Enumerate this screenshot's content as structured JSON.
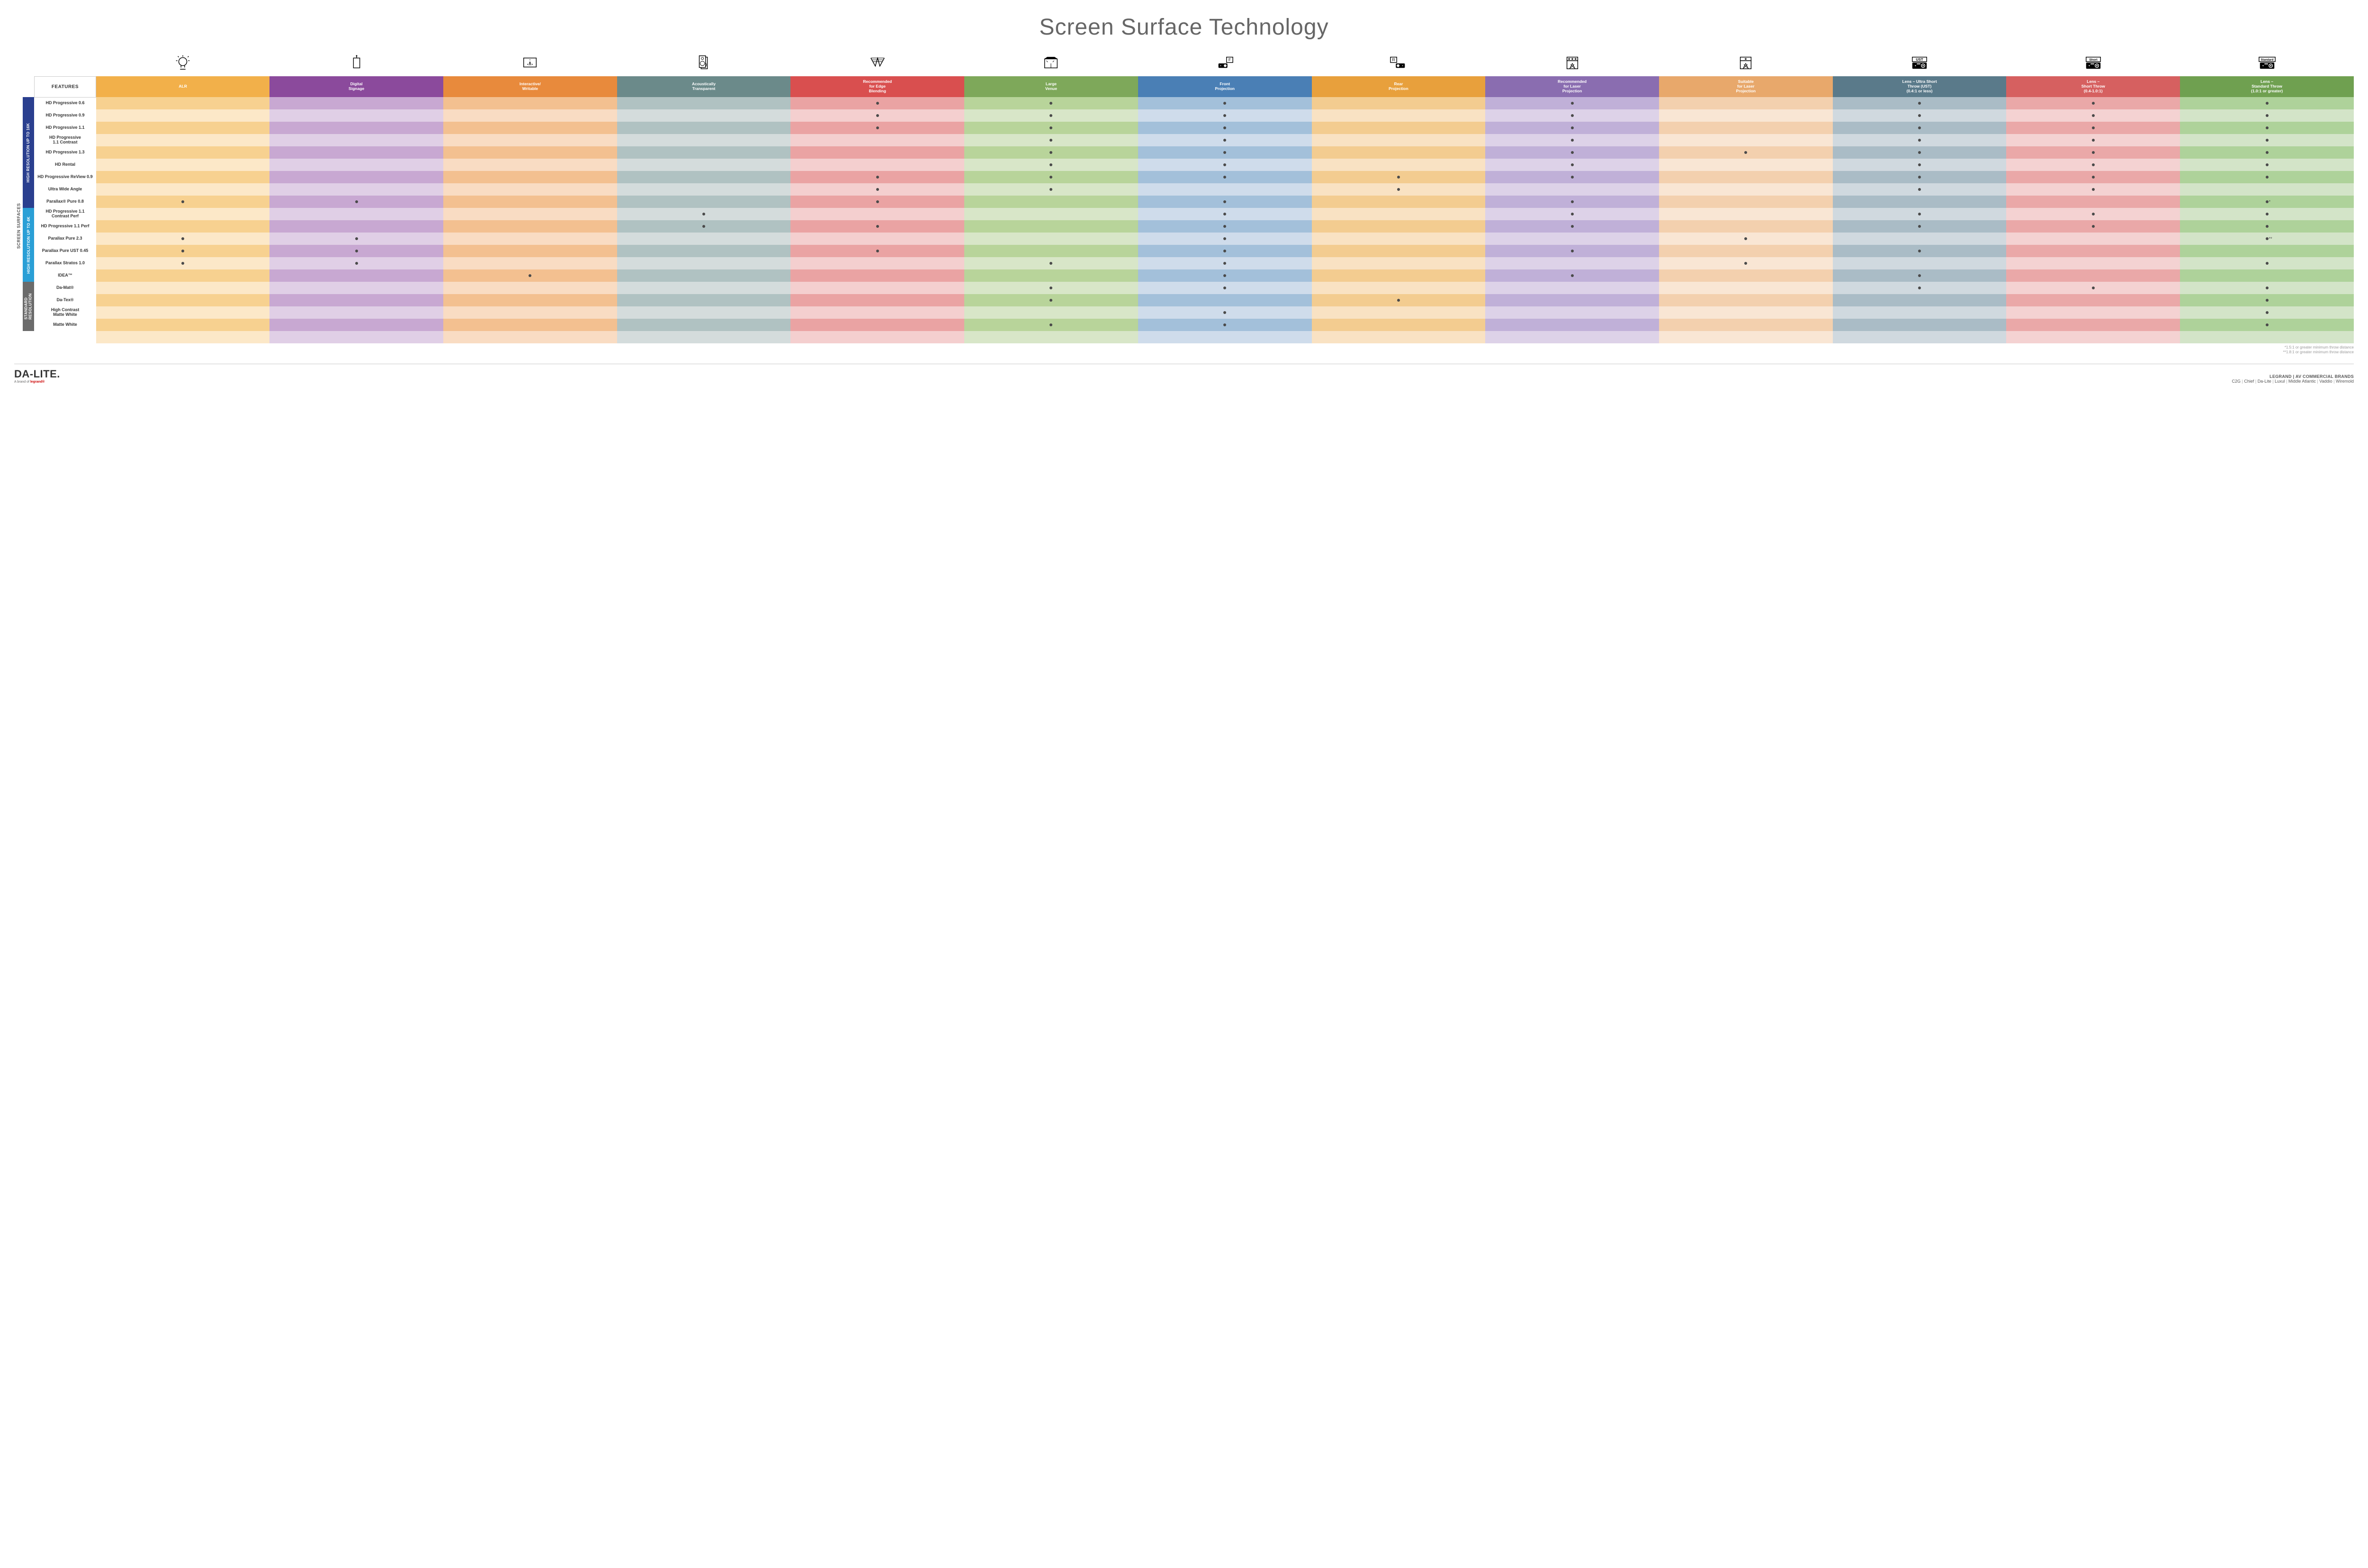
{
  "title": "Screen Surface Technology",
  "outer_label": "SCREEN SURFACES",
  "colors": {
    "columns": [
      "#f2b04a",
      "#8b4a9c",
      "#e88a3c",
      "#6b8a8a",
      "#d94f4f",
      "#7ea85a",
      "#4a7fb5",
      "#e8a03c",
      "#8a6db0",
      "#e8a86b",
      "#5a7a8a",
      "#d66060",
      "#6fa050"
    ],
    "columns_light": [
      "#fce8c8",
      "#e0cfe6",
      "#f9dcc3",
      "#d4dcdc",
      "#f4cfcf",
      "#d8e6c8",
      "#cfdceb",
      "#f9e2c3",
      "#ddd2e8",
      "#f9e6d4",
      "#d0d9df",
      "#f4d2d2",
      "#d3e4c8"
    ],
    "columns_mid": [
      "#f7d190",
      "#c8a8d2",
      "#f3c090",
      "#b0c2c2",
      "#eaa3a3",
      "#b8d49a",
      "#a3c0da",
      "#f3cc90",
      "#c0b0d8",
      "#f3d0ae",
      "#aabcc6",
      "#eaa8a8",
      "#aed29a"
    ],
    "groups": [
      "#2a3f8f",
      "#2a9fd6",
      "#6b6b6b"
    ]
  },
  "columns": [
    {
      "label": "ALR",
      "icon": "bulb"
    },
    {
      "label": "Digital\nSignage",
      "icon": "signage"
    },
    {
      "label": "Interactive/\nWritable",
      "icon": "touch"
    },
    {
      "label": "Acoustically\nTransparent",
      "icon": "speaker"
    },
    {
      "label": "Recommended\nfor Edge\nBlending",
      "icon": "edge"
    },
    {
      "label": "Large\nVenue",
      "icon": "venue"
    },
    {
      "label": "Front\nProjection",
      "icon": "front"
    },
    {
      "label": "Rear\nProjection",
      "icon": "rear"
    },
    {
      "label": "Recommended\nfor Laser\nProjection",
      "icon": "laser3"
    },
    {
      "label": "Suitable\nfor Laser\nProjection",
      "icon": "laser1"
    },
    {
      "label": "Lens – Ultra Short\nThrow (UST)\n(0.4:1 or less)",
      "icon": "ust"
    },
    {
      "label": "Lens –\nShort Throw\n(0.4-1.0:1)",
      "icon": "short"
    },
    {
      "label": "Lens –\nStandard Throw\n(1.0:1 or greater)",
      "icon": "std"
    }
  ],
  "groups": [
    {
      "label": "HIGH RESOLUTION UP TO 16K",
      "rows": 9
    },
    {
      "label": "HIGH RESOLUTION UP TO 4K",
      "rows": 6
    },
    {
      "label": "STANDARD\nRESOLUTION",
      "rows": 4
    }
  ],
  "features_header": "FEATURES",
  "rows": [
    {
      "label": "HD Progressive 0.6",
      "dots": [
        0,
        0,
        0,
        0,
        1,
        1,
        1,
        0,
        1,
        0,
        1,
        1,
        1
      ]
    },
    {
      "label": "HD Progressive 0.9",
      "dots": [
        0,
        0,
        0,
        0,
        1,
        1,
        1,
        0,
        1,
        0,
        1,
        1,
        1
      ]
    },
    {
      "label": "HD Progressive 1.1",
      "dots": [
        0,
        0,
        0,
        0,
        1,
        1,
        1,
        0,
        1,
        0,
        1,
        1,
        1
      ]
    },
    {
      "label": "HD Progressive\n1.1 Contrast",
      "dots": [
        0,
        0,
        0,
        0,
        0,
        1,
        1,
        0,
        1,
        0,
        1,
        1,
        1
      ]
    },
    {
      "label": "HD Progressive 1.3",
      "dots": [
        0,
        0,
        0,
        0,
        0,
        1,
        1,
        0,
        1,
        1,
        1,
        1,
        1
      ]
    },
    {
      "label": "HD Rental",
      "dots": [
        0,
        0,
        0,
        0,
        0,
        1,
        1,
        0,
        1,
        0,
        1,
        1,
        1
      ]
    },
    {
      "label": "HD Progressive ReView 0.9",
      "dots": [
        0,
        0,
        0,
        0,
        1,
        1,
        1,
        1,
        1,
        0,
        1,
        1,
        1
      ]
    },
    {
      "label": "Ultra Wide Angle",
      "dots": [
        0,
        0,
        0,
        0,
        1,
        1,
        0,
        1,
        0,
        0,
        1,
        1,
        0
      ]
    },
    {
      "label": "Parallax® Pure 0.8",
      "dots": [
        1,
        1,
        0,
        0,
        1,
        0,
        1,
        0,
        1,
        0,
        0,
        0,
        1
      ],
      "note": "*"
    },
    {
      "label": "HD Progressive 1.1\nContrast Perf",
      "dots": [
        0,
        0,
        0,
        1,
        0,
        0,
        1,
        0,
        1,
        0,
        1,
        1,
        1
      ]
    },
    {
      "label": "HD Progressive 1.1 Perf",
      "dots": [
        0,
        0,
        0,
        1,
        1,
        0,
        1,
        0,
        1,
        0,
        1,
        1,
        1
      ]
    },
    {
      "label": "Parallax Pure 2.3",
      "dots": [
        1,
        1,
        0,
        0,
        0,
        0,
        1,
        0,
        0,
        1,
        0,
        0,
        1
      ],
      "note": "**"
    },
    {
      "label": "Parallax Pure UST 0.45",
      "dots": [
        1,
        1,
        0,
        0,
        1,
        0,
        1,
        0,
        1,
        0,
        1,
        0,
        0
      ]
    },
    {
      "label": "Parallax Stratos 1.0",
      "dots": [
        1,
        1,
        0,
        0,
        0,
        1,
        1,
        0,
        0,
        1,
        0,
        0,
        1
      ]
    },
    {
      "label": "IDEA™",
      "dots": [
        0,
        0,
        1,
        0,
        0,
        0,
        1,
        0,
        1,
        0,
        1,
        0,
        0
      ]
    },
    {
      "label": "Da-Mat®",
      "dots": [
        0,
        0,
        0,
        0,
        0,
        1,
        1,
        0,
        0,
        0,
        1,
        1,
        1
      ]
    },
    {
      "label": "Da-Tex®",
      "dots": [
        0,
        0,
        0,
        0,
        0,
        1,
        0,
        1,
        0,
        0,
        0,
        0,
        1
      ]
    },
    {
      "label": "High Contrast\nMatte White",
      "dots": [
        0,
        0,
        0,
        0,
        0,
        0,
        1,
        0,
        0,
        0,
        0,
        0,
        1
      ]
    },
    {
      "label": "Matte White",
      "dots": [
        0,
        0,
        0,
        0,
        0,
        1,
        1,
        0,
        0,
        0,
        0,
        0,
        1
      ]
    }
  ],
  "footnotes": [
    "*1.5:1 or greater minimum throw distance",
    "**1.8:1 or greater minimum throw distance"
  ],
  "footer": {
    "logo": "DA-LITE.",
    "tagline_prefix": "A brand of ",
    "tagline_brand": "legrand®",
    "brands_title": "LEGRAND | AV COMMERCIAL BRANDS",
    "brands": [
      "C2G",
      "Chief",
      "Da-Lite",
      "Luxul",
      "Middle Atlantic",
      "Vaddio",
      "Wiremold"
    ]
  }
}
